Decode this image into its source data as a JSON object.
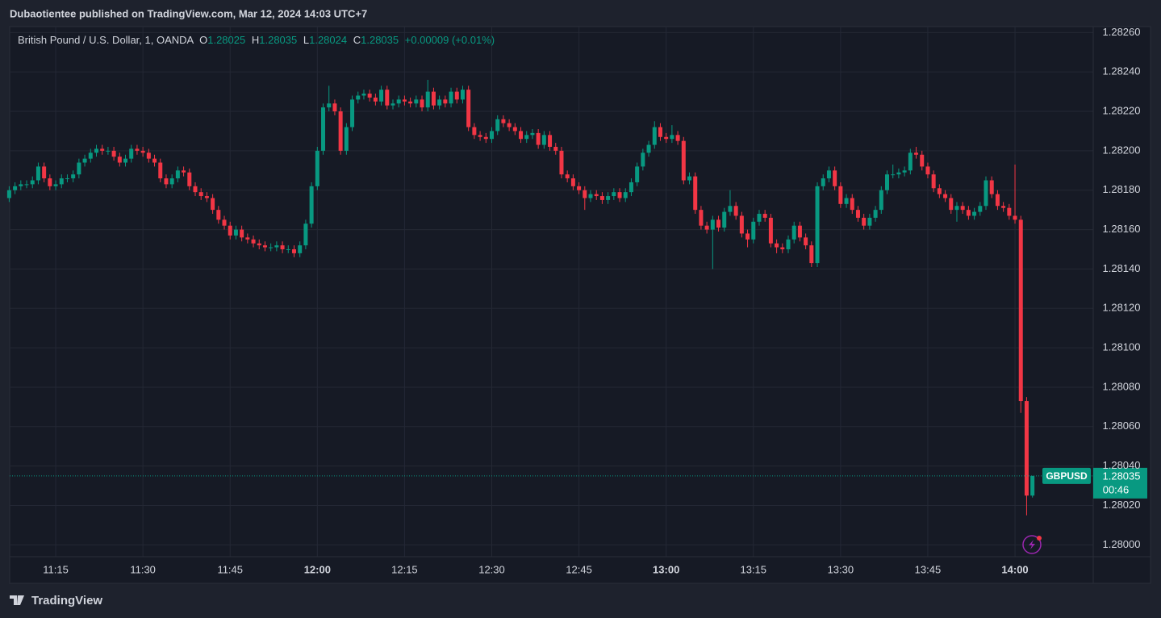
{
  "header": {
    "published": "Dubaotientee published on TradingView.com, Mar 12, 2024 14:03 UTC+7"
  },
  "footer": {
    "brand": "TradingView"
  },
  "chart_data": {
    "type": "candlestick",
    "symbol_title": "British Pound / U.S. Dollar, 1, OANDA",
    "ohlc_labels": [
      "O",
      "H",
      "L",
      "C"
    ],
    "change": "+0.00009",
    "change_pct": "(+0.01%)",
    "price_label": {
      "symbol": "GBPUSD",
      "countdown": "00:46"
    },
    "up_color": "#089981",
    "down_color": "#f23645",
    "grid": true,
    "x": [
      "11:07",
      "11:08",
      "11:09",
      "11:10",
      "11:11",
      "11:12",
      "11:13",
      "11:14",
      "11:15",
      "11:16",
      "11:17",
      "11:18",
      "11:19",
      "11:20",
      "11:21",
      "11:22",
      "11:23",
      "11:24",
      "11:25",
      "11:26",
      "11:27",
      "11:28",
      "11:29",
      "11:30",
      "11:31",
      "11:32",
      "11:33",
      "11:34",
      "11:35",
      "11:36",
      "11:37",
      "11:38",
      "11:39",
      "11:40",
      "11:41",
      "11:42",
      "11:43",
      "11:44",
      "11:45",
      "11:46",
      "11:47",
      "11:48",
      "11:49",
      "11:50",
      "11:51",
      "11:52",
      "11:53",
      "11:54",
      "11:55",
      "11:56",
      "11:57",
      "11:58",
      "11:59",
      "12:00",
      "12:01",
      "12:02",
      "12:03",
      "12:04",
      "12:05",
      "12:06",
      "12:07",
      "12:08",
      "12:09",
      "12:10",
      "12:11",
      "12:12",
      "12:13",
      "12:14",
      "12:15",
      "12:16",
      "12:17",
      "12:18",
      "12:19",
      "12:20",
      "12:21",
      "12:22",
      "12:23",
      "12:24",
      "12:25",
      "12:26",
      "12:27",
      "12:28",
      "12:29",
      "12:30",
      "12:31",
      "12:32",
      "12:33",
      "12:34",
      "12:35",
      "12:36",
      "12:37",
      "12:38",
      "12:39",
      "12:40",
      "12:41",
      "12:42",
      "12:43",
      "12:44",
      "12:45",
      "12:46",
      "12:47",
      "12:48",
      "12:49",
      "12:50",
      "12:51",
      "12:52",
      "12:53",
      "12:54",
      "12:55",
      "12:56",
      "12:57",
      "12:58",
      "12:59",
      "13:00",
      "13:01",
      "13:02",
      "13:03",
      "13:04",
      "13:05",
      "13:06",
      "13:07",
      "13:08",
      "13:09",
      "13:10",
      "13:11",
      "13:12",
      "13:13",
      "13:14",
      "13:15",
      "13:16",
      "13:17",
      "13:18",
      "13:19",
      "13:20",
      "13:21",
      "13:22",
      "13:23",
      "13:24",
      "13:25",
      "13:26",
      "13:27",
      "13:28",
      "13:29",
      "13:30",
      "13:31",
      "13:32",
      "13:33",
      "13:34",
      "13:35",
      "13:36",
      "13:37",
      "13:38",
      "13:39",
      "13:40",
      "13:41",
      "13:42",
      "13:43",
      "13:44",
      "13:45",
      "13:46",
      "13:47",
      "13:48",
      "13:49",
      "13:50",
      "13:51",
      "13:52",
      "13:53",
      "13:54",
      "13:55",
      "13:56",
      "13:57",
      "13:58",
      "13:59",
      "14:00",
      "14:01",
      "14:02",
      "14:03"
    ],
    "open": [
      1.28176,
      1.2818,
      1.28182,
      1.28183,
      1.28183,
      1.28185,
      1.28192,
      1.28186,
      1.28182,
      1.28183,
      1.28186,
      1.28186,
      1.28188,
      1.28194,
      1.28196,
      1.28199,
      1.28201,
      1.282,
      1.282,
      1.28197,
      1.28194,
      1.28196,
      1.28201,
      1.282,
      1.28199,
      1.28196,
      1.28194,
      1.28186,
      1.28183,
      1.28186,
      1.2819,
      1.28189,
      1.28182,
      1.28179,
      1.28177,
      1.28176,
      1.2817,
      1.28165,
      1.28162,
      1.28157,
      1.2816,
      1.28156,
      1.28155,
      1.28153,
      1.28152,
      1.28151,
      1.28151,
      1.28152,
      1.2815,
      1.2815,
      1.28148,
      1.28152,
      1.28163,
      1.28182,
      1.282,
      1.28222,
      1.28224,
      1.2822,
      1.282,
      1.28212,
      1.28226,
      1.28228,
      1.28229,
      1.28227,
      1.28225,
      1.28231,
      1.28223,
      1.28224,
      1.28226,
      1.28225,
      1.28224,
      1.28226,
      1.28222,
      1.2823,
      1.28223,
      1.28226,
      1.28224,
      1.2823,
      1.28226,
      1.28231,
      1.28212,
      1.28208,
      1.28207,
      1.28206,
      1.2821,
      1.28216,
      1.28214,
      1.28212,
      1.2821,
      1.28206,
      1.28208,
      1.28209,
      1.28203,
      1.28208,
      1.28202,
      1.282,
      1.28188,
      1.28186,
      1.28182,
      1.2818,
      1.28176,
      1.28178,
      1.28177,
      1.28175,
      1.28177,
      1.28179,
      1.28176,
      1.28179,
      1.28184,
      1.28192,
      1.28199,
      1.28203,
      1.28212,
      1.28207,
      1.28206,
      1.28208,
      1.28205,
      1.28185,
      1.28187,
      1.2817,
      1.28162,
      1.2816,
      1.28165,
      1.28161,
      1.28169,
      1.28172,
      1.28167,
      1.28158,
      1.28155,
      1.28164,
      1.28168,
      1.28166,
      1.28153,
      1.28151,
      1.2815,
      1.28155,
      1.28162,
      1.28156,
      1.28152,
      1.28143,
      1.28182,
      1.28186,
      1.2819,
      1.28182,
      1.28173,
      1.28176,
      1.2817,
      1.28166,
      1.28162,
      1.28166,
      1.2817,
      1.2818,
      1.28188,
      1.28188,
      1.28189,
      1.2819,
      1.28199,
      1.28198,
      1.28192,
      1.28188,
      1.28181,
      1.28178,
      1.28176,
      1.2817,
      1.28172,
      1.2817,
      1.28167,
      1.28169,
      1.28172,
      1.28185,
      1.28178,
      1.28172,
      1.28171,
      1.28167,
      1.28165,
      1.28073,
      1.28025
    ],
    "high": [
      1.28182,
      1.28184,
      1.28185,
      1.28185,
      1.28187,
      1.28194,
      1.28194,
      1.28188,
      1.28185,
      1.28188,
      1.28188,
      1.2819,
      1.28196,
      1.28198,
      1.28201,
      1.28203,
      1.28203,
      1.28202,
      1.28202,
      1.28199,
      1.28198,
      1.28203,
      1.28203,
      1.28202,
      1.28201,
      1.28198,
      1.28196,
      1.28188,
      1.28188,
      1.28192,
      1.28192,
      1.28191,
      1.28184,
      1.28181,
      1.28179,
      1.28178,
      1.28172,
      1.28167,
      1.28164,
      1.28162,
      1.28162,
      1.28158,
      1.28157,
      1.28155,
      1.28154,
      1.28153,
      1.28154,
      1.28154,
      1.28152,
      1.28152,
      1.28154,
      1.28165,
      1.28184,
      1.28202,
      1.28224,
      1.28233,
      1.28226,
      1.28222,
      1.28214,
      1.28228,
      1.2823,
      1.28231,
      1.28231,
      1.28229,
      1.28233,
      1.28233,
      1.28226,
      1.28228,
      1.28228,
      1.28227,
      1.28228,
      1.28228,
      1.28236,
      1.28232,
      1.28228,
      1.28228,
      1.28232,
      1.28232,
      1.28233,
      1.28233,
      1.28214,
      1.2821,
      1.28209,
      1.28212,
      1.28218,
      1.28218,
      1.28216,
      1.28214,
      1.28212,
      1.2821,
      1.28211,
      1.28211,
      1.2821,
      1.2821,
      1.28204,
      1.28202,
      1.2819,
      1.28188,
      1.28184,
      1.28182,
      1.2818,
      1.2818,
      1.28179,
      1.28179,
      1.28181,
      1.28181,
      1.28181,
      1.28186,
      1.28194,
      1.28201,
      1.28205,
      1.28215,
      1.28214,
      1.28209,
      1.28213,
      1.2821,
      1.28207,
      1.28189,
      1.28189,
      1.28172,
      1.28164,
      1.28167,
      1.28167,
      1.28171,
      1.2818,
      1.28174,
      1.28169,
      1.2816,
      1.28166,
      1.2817,
      1.2817,
      1.28168,
      1.28155,
      1.28153,
      1.28157,
      1.28164,
      1.28164,
      1.28158,
      1.28154,
      1.28184,
      1.28188,
      1.28192,
      1.28192,
      1.28184,
      1.28178,
      1.28178,
      1.28172,
      1.28168,
      1.28168,
      1.28172,
      1.28182,
      1.2819,
      1.28193,
      1.28191,
      1.28192,
      1.28201,
      1.28202,
      1.282,
      1.28194,
      1.2819,
      1.28183,
      1.2818,
      1.28178,
      1.28174,
      1.28174,
      1.28172,
      1.28171,
      1.28174,
      1.28187,
      1.28187,
      1.2818,
      1.28174,
      1.28173,
      1.28193,
      1.28167,
      1.28075,
      1.28035
    ],
    "low": [
      1.28174,
      1.28178,
      1.2818,
      1.28181,
      1.28181,
      1.28183,
      1.28184,
      1.2818,
      1.2818,
      1.28181,
      1.28184,
      1.28184,
      1.28186,
      1.28192,
      1.28194,
      1.28197,
      1.28198,
      1.28198,
      1.28195,
      1.28192,
      1.28192,
      1.28194,
      1.28198,
      1.28197,
      1.28194,
      1.28192,
      1.28184,
      1.28181,
      1.28181,
      1.28184,
      1.28187,
      1.2818,
      1.28177,
      1.28175,
      1.28174,
      1.28168,
      1.28163,
      1.2816,
      1.28155,
      1.28155,
      1.28154,
      1.28153,
      1.28151,
      1.2815,
      1.28149,
      1.28149,
      1.28149,
      1.28148,
      1.28148,
      1.28146,
      1.28146,
      1.2815,
      1.28161,
      1.2818,
      1.28198,
      1.2822,
      1.28218,
      1.28198,
      1.28198,
      1.2821,
      1.28224,
      1.28226,
      1.28225,
      1.28223,
      1.28223,
      1.28221,
      1.28221,
      1.28222,
      1.28223,
      1.28222,
      1.28222,
      1.2822,
      1.2822,
      1.28221,
      1.28221,
      1.28222,
      1.28222,
      1.28224,
      1.28224,
      1.2821,
      1.28206,
      1.28205,
      1.28204,
      1.28204,
      1.28208,
      1.28212,
      1.2821,
      1.28208,
      1.28204,
      1.28204,
      1.28206,
      1.28201,
      1.28201,
      1.282,
      1.28198,
      1.28186,
      1.28184,
      1.2818,
      1.28178,
      1.2817,
      1.28174,
      1.28175,
      1.28173,
      1.28173,
      1.28175,
      1.28174,
      1.28174,
      1.28177,
      1.28182,
      1.2819,
      1.28197,
      1.28201,
      1.28205,
      1.28204,
      1.28204,
      1.28203,
      1.28183,
      1.28183,
      1.28168,
      1.2816,
      1.28158,
      1.2814,
      1.28159,
      1.28159,
      1.28167,
      1.28165,
      1.28156,
      1.28151,
      1.28153,
      1.28162,
      1.28164,
      1.28151,
      1.28148,
      1.28148,
      1.28148,
      1.28153,
      1.28154,
      1.2815,
      1.28141,
      1.28141,
      1.2818,
      1.28184,
      1.2818,
      1.28171,
      1.28171,
      1.28168,
      1.28164,
      1.2816,
      1.2816,
      1.28164,
      1.28168,
      1.28178,
      1.28186,
      1.28186,
      1.28187,
      1.28188,
      1.28196,
      1.2819,
      1.28186,
      1.28179,
      1.28176,
      1.28174,
      1.28168,
      1.28164,
      1.28168,
      1.28165,
      1.28165,
      1.28167,
      1.2817,
      1.28176,
      1.2817,
      1.28169,
      1.28165,
      1.28163,
      1.28067,
      1.28015,
      1.28024
    ],
    "close": [
      1.2818,
      1.28182,
      1.28183,
      1.28183,
      1.28185,
      1.28192,
      1.28186,
      1.28182,
      1.28183,
      1.28186,
      1.28186,
      1.28188,
      1.28194,
      1.28196,
      1.28199,
      1.28201,
      1.282,
      1.282,
      1.28197,
      1.28194,
      1.28196,
      1.28201,
      1.282,
      1.28199,
      1.28196,
      1.28194,
      1.28186,
      1.28183,
      1.28186,
      1.2819,
      1.28189,
      1.28182,
      1.28179,
      1.28177,
      1.28176,
      1.2817,
      1.28165,
      1.28162,
      1.28157,
      1.2816,
      1.28156,
      1.28155,
      1.28153,
      1.28152,
      1.28151,
      1.28151,
      1.28152,
      1.2815,
      1.2815,
      1.28148,
      1.28152,
      1.28163,
      1.28182,
      1.282,
      1.28222,
      1.28224,
      1.2822,
      1.282,
      1.28212,
      1.28226,
      1.28228,
      1.28229,
      1.28227,
      1.28225,
      1.28231,
      1.28223,
      1.28224,
      1.28226,
      1.28225,
      1.28224,
      1.28226,
      1.28222,
      1.2823,
      1.28223,
      1.28226,
      1.28224,
      1.2823,
      1.28226,
      1.28231,
      1.28212,
      1.28208,
      1.28207,
      1.28206,
      1.2821,
      1.28216,
      1.28214,
      1.28212,
      1.2821,
      1.28206,
      1.28208,
      1.28209,
      1.28203,
      1.28208,
      1.28202,
      1.282,
      1.28188,
      1.28186,
      1.28182,
      1.2818,
      1.28176,
      1.28178,
      1.28177,
      1.28175,
      1.28177,
      1.28179,
      1.28176,
      1.28179,
      1.28184,
      1.28192,
      1.28199,
      1.28203,
      1.28212,
      1.28207,
      1.28206,
      1.28208,
      1.28205,
      1.28185,
      1.28187,
      1.2817,
      1.28162,
      1.2816,
      1.28165,
      1.28161,
      1.28169,
      1.28172,
      1.28167,
      1.28158,
      1.28155,
      1.28164,
      1.28168,
      1.28166,
      1.28153,
      1.28151,
      1.2815,
      1.28155,
      1.28162,
      1.28156,
      1.28152,
      1.28143,
      1.28182,
      1.28186,
      1.2819,
      1.28182,
      1.28173,
      1.28176,
      1.2817,
      1.28166,
      1.28162,
      1.28166,
      1.2817,
      1.2818,
      1.28188,
      1.28188,
      1.28189,
      1.2819,
      1.28199,
      1.28198,
      1.28192,
      1.28188,
      1.28181,
      1.28178,
      1.28176,
      1.2817,
      1.28172,
      1.2817,
      1.28167,
      1.28169,
      1.28172,
      1.28185,
      1.28178,
      1.28172,
      1.28171,
      1.28167,
      1.28165,
      1.28073,
      1.28025,
      1.28035
    ],
    "ylim": [
      1.27994,
      1.28263
    ],
    "yticks": [
      {
        "value": 1.28,
        "label": "1.28000"
      },
      {
        "value": 1.2802,
        "label": "1.28020"
      },
      {
        "value": 1.2804,
        "label": "1.28040"
      },
      {
        "value": 1.2806,
        "label": "1.28060"
      },
      {
        "value": 1.2808,
        "label": "1.28080"
      },
      {
        "value": 1.281,
        "label": "1.28100"
      },
      {
        "value": 1.2812,
        "label": "1.28120"
      },
      {
        "value": 1.2814,
        "label": "1.28140"
      },
      {
        "value": 1.2816,
        "label": "1.28160"
      },
      {
        "value": 1.2818,
        "label": "1.28180"
      },
      {
        "value": 1.282,
        "label": "1.28200"
      },
      {
        "value": 1.2822,
        "label": "1.28220"
      },
      {
        "value": 1.2824,
        "label": "1.28240"
      },
      {
        "value": 1.2826,
        "label": "1.28260"
      }
    ],
    "xticks": [
      "11:15",
      "11:30",
      "11:45",
      "12:00",
      "12:15",
      "12:30",
      "12:45",
      "13:00",
      "13:15",
      "13:30",
      "13:45",
      "14:00"
    ]
  }
}
